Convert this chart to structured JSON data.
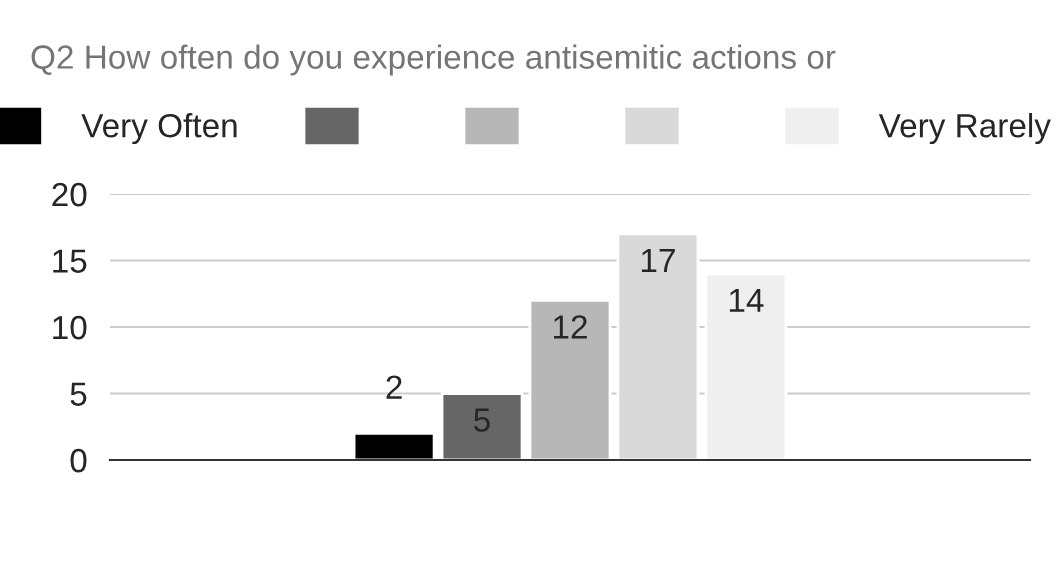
{
  "chart_data": {
    "type": "bar",
    "title": "Q2 How often do you experience antisemitic actions or",
    "categories": [
      null
    ],
    "series": [
      {
        "name": "Very Often",
        "color": "#000000",
        "values": [
          2
        ]
      },
      {
        "color": "#666666",
        "values": [
          5
        ]
      },
      {
        "color": "#b7b7b7",
        "values": [
          12
        ]
      },
      {
        "color": "#d9d9d9",
        "values": [
          17
        ]
      },
      {
        "name": "Very Rarely",
        "color": "#efefef",
        "values": [
          14
        ]
      }
    ],
    "ylim": [
      0,
      20
    ],
    "yticks": [
      0,
      5,
      10,
      15,
      20
    ],
    "grid": "y",
    "legend": "top",
    "data_labels": true
  }
}
